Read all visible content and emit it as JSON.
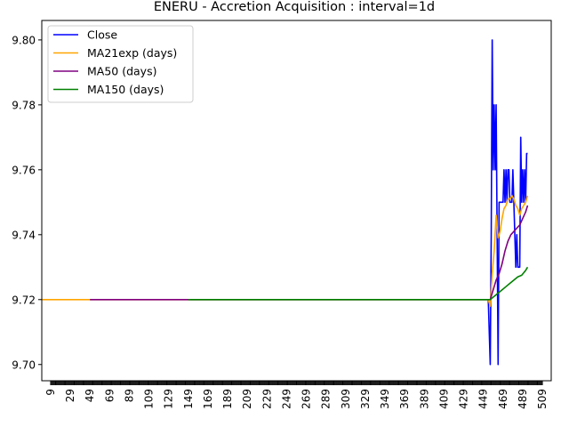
{
  "chart_data": {
    "type": "line",
    "title": "ENERU - Accretion Acquisition : interval=1d",
    "xlabel": "",
    "ylabel": "",
    "xlim": [
      0,
      518
    ],
    "ylim": [
      9.695,
      9.806
    ],
    "x_ticks": [
      9,
      29,
      49,
      69,
      89,
      109,
      129,
      149,
      169,
      189,
      209,
      229,
      249,
      269,
      289,
      309,
      329,
      349,
      369,
      389,
      409,
      429,
      449,
      469,
      489,
      509
    ],
    "y_ticks": [
      9.7,
      9.72,
      9.74,
      9.76,
      9.78,
      9.8
    ],
    "y_tick_labels": [
      "9.70",
      "9.72",
      "9.74",
      "9.76",
      "9.78",
      "9.80"
    ],
    "grid": false,
    "legend": "upper-left",
    "series": [
      {
        "name": "Close",
        "color": "#0000ff",
        "points": [
          [
            454,
            9.72
          ],
          [
            456,
            9.7
          ],
          [
            457,
            9.74
          ],
          [
            458,
            9.8
          ],
          [
            459,
            9.76
          ],
          [
            460,
            9.78
          ],
          [
            461,
            9.76
          ],
          [
            462,
            9.78
          ],
          [
            463,
            9.74
          ],
          [
            464,
            9.7
          ],
          [
            465,
            9.75
          ],
          [
            467,
            9.75
          ],
          [
            469,
            9.75
          ],
          [
            470,
            9.76
          ],
          [
            471,
            9.75
          ],
          [
            472,
            9.76
          ],
          [
            473,
            9.75
          ],
          [
            474,
            9.76
          ],
          [
            475,
            9.76
          ],
          [
            476,
            9.75
          ],
          [
            478,
            9.75
          ],
          [
            479,
            9.76
          ],
          [
            480,
            9.75
          ],
          [
            481,
            9.74
          ],
          [
            482,
            9.73
          ],
          [
            483,
            9.74
          ],
          [
            484,
            9.73
          ],
          [
            486,
            9.73
          ],
          [
            487,
            9.77
          ],
          [
            488,
            9.75
          ],
          [
            489,
            9.76
          ],
          [
            490,
            9.75
          ],
          [
            491,
            9.76
          ],
          [
            492,
            9.75
          ],
          [
            493,
            9.765
          ],
          [
            494,
            9.765
          ]
        ]
      },
      {
        "name": "MA21exp (days)",
        "color": "#ffa500",
        "points": [
          [
            0,
            9.72
          ],
          [
            49,
            9.72
          ],
          [
            454,
            9.72
          ],
          [
            456,
            9.718
          ],
          [
            458,
            9.728
          ],
          [
            460,
            9.735
          ],
          [
            462,
            9.746
          ],
          [
            464,
            9.739
          ],
          [
            466,
            9.741
          ],
          [
            468,
            9.745
          ],
          [
            470,
            9.748
          ],
          [
            472,
            9.749
          ],
          [
            474,
            9.751
          ],
          [
            476,
            9.751
          ],
          [
            478,
            9.752
          ],
          [
            480,
            9.751
          ],
          [
            482,
            9.749
          ],
          [
            484,
            9.748
          ],
          [
            486,
            9.746
          ],
          [
            488,
            9.748
          ],
          [
            490,
            9.749
          ],
          [
            492,
            9.75
          ],
          [
            494,
            9.752
          ]
        ]
      },
      {
        "name": "MA50 (days)",
        "color": "#800080",
        "points": [
          [
            49,
            9.72
          ],
          [
            454,
            9.72
          ],
          [
            456,
            9.72
          ],
          [
            458,
            9.722
          ],
          [
            460,
            9.724
          ],
          [
            462,
            9.726
          ],
          [
            465,
            9.728
          ],
          [
            468,
            9.731
          ],
          [
            471,
            9.735
          ],
          [
            474,
            9.738
          ],
          [
            477,
            9.74
          ],
          [
            480,
            9.741
          ],
          [
            483,
            9.742
          ],
          [
            486,
            9.743
          ],
          [
            489,
            9.745
          ],
          [
            492,
            9.747
          ],
          [
            494,
            9.749
          ]
        ]
      },
      {
        "name": "MA150 (days)",
        "color": "#008000",
        "points": [
          [
            149,
            9.72
          ],
          [
            454,
            9.72
          ],
          [
            456,
            9.72
          ],
          [
            460,
            9.721
          ],
          [
            464,
            9.722
          ],
          [
            468,
            9.723
          ],
          [
            472,
            9.724
          ],
          [
            476,
            9.725
          ],
          [
            480,
            9.726
          ],
          [
            484,
            9.727
          ],
          [
            488,
            9.7275
          ],
          [
            492,
            9.729
          ],
          [
            494,
            9.73
          ]
        ]
      }
    ]
  }
}
